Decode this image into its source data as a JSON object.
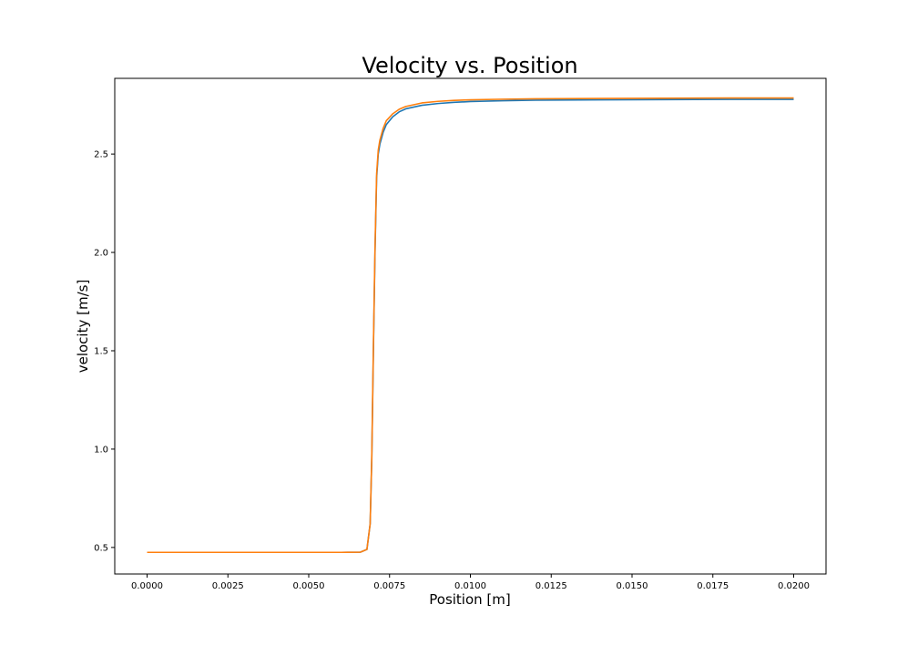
{
  "chart_data": {
    "type": "line",
    "title": "Velocity vs. Position",
    "xlabel": "Position [m]",
    "ylabel": "velocity [m/s]",
    "xlim": [
      -0.001,
      0.021
    ],
    "ylim": [
      0.365,
      2.885
    ],
    "grid": false,
    "legend": "none",
    "x_ticks": [
      0.0,
      0.0025,
      0.005,
      0.0075,
      0.01,
      0.0125,
      0.015,
      0.0175,
      0.02
    ],
    "x_tick_labels": [
      "0.0000",
      "0.0025",
      "0.0050",
      "0.0075",
      "0.0100",
      "0.0125",
      "0.0150",
      "0.0175",
      "0.0200"
    ],
    "y_ticks": [
      0.5,
      1.0,
      1.5,
      2.0,
      2.5
    ],
    "y_tick_labels": [
      "0.5",
      "1.0",
      "1.5",
      "2.0",
      "2.5"
    ],
    "series": [
      {
        "name": "series-1",
        "color": "#1f77b4",
        "x": [
          0.0,
          0.002,
          0.004,
          0.006,
          0.0066,
          0.0068,
          0.0069,
          0.00695,
          0.007,
          0.00705,
          0.0071,
          0.00715,
          0.0072,
          0.0073,
          0.0074,
          0.0076,
          0.0078,
          0.008,
          0.0085,
          0.009,
          0.0095,
          0.01,
          0.011,
          0.012,
          0.014,
          0.016,
          0.018,
          0.02
        ],
        "y": [
          0.475,
          0.475,
          0.475,
          0.475,
          0.476,
          0.49,
          0.62,
          0.95,
          1.5,
          2.0,
          2.38,
          2.5,
          2.55,
          2.61,
          2.65,
          2.69,
          2.715,
          2.73,
          2.748,
          2.757,
          2.763,
          2.767,
          2.771,
          2.774,
          2.776,
          2.777,
          2.778,
          2.778
        ]
      },
      {
        "name": "series-2",
        "color": "#ff7f0e",
        "x": [
          0.0,
          0.002,
          0.004,
          0.006,
          0.0066,
          0.0068,
          0.0069,
          0.00695,
          0.007,
          0.00705,
          0.0071,
          0.00715,
          0.0072,
          0.0073,
          0.0074,
          0.0076,
          0.0078,
          0.008,
          0.0085,
          0.009,
          0.0095,
          0.01,
          0.011,
          0.012,
          0.014,
          0.016,
          0.018,
          0.02
        ],
        "y": [
          0.475,
          0.475,
          0.475,
          0.475,
          0.476,
          0.49,
          0.62,
          0.96,
          1.52,
          2.02,
          2.4,
          2.52,
          2.57,
          2.63,
          2.67,
          2.705,
          2.728,
          2.742,
          2.76,
          2.768,
          2.773,
          2.776,
          2.779,
          2.781,
          2.783,
          2.784,
          2.785,
          2.785
        ]
      }
    ]
  }
}
